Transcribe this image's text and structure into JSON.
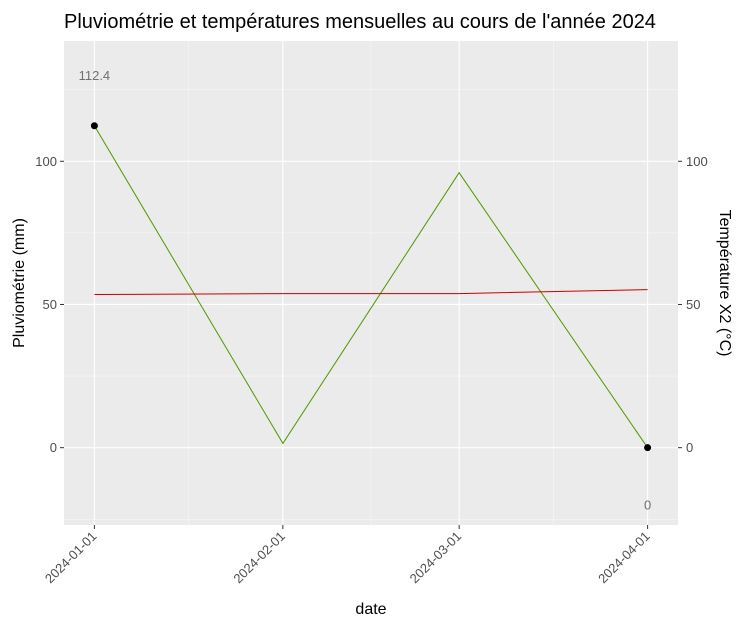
{
  "chart_data": {
    "type": "line",
    "title": "Pluviométrie et températures mensuelles au cours de l'année 2024",
    "xlabel": "date",
    "ylabel": "Pluviométrie (mm)",
    "y2label": "Température X2 (°C)",
    "x": [
      "2024-01-01",
      "2024-02-01",
      "2024-03-01",
      "2024-04-01"
    ],
    "xticks": [
      "2024-01-01",
      "2024-02-01",
      "2024-03-01",
      "2024-04-01"
    ],
    "yticks": [
      "0",
      "50",
      "100"
    ],
    "y2ticks": [
      "0",
      "50",
      "100"
    ],
    "ylim": [
      -27,
      142
    ],
    "xlim": [
      "2023-12-27",
      "2024-04-06"
    ],
    "grid": true,
    "series": [
      {
        "color": "#4d9900",
        "values": [
          112.4,
          1.5,
          96.0,
          0
        ]
      },
      {
        "color": "#cc0000",
        "values": [
          53.5,
          53.8,
          53.8,
          55.2
        ]
      }
    ],
    "points": [
      {
        "x": "2024-01-01",
        "y": 112.4
      },
      {
        "x": "2024-04-01",
        "y": 0
      }
    ],
    "annotations": [
      {
        "text": "112.4",
        "x": "2024-01-01",
        "y": 130
      },
      {
        "text": "0",
        "x": "2024-04-01",
        "y": -20
      }
    ]
  }
}
